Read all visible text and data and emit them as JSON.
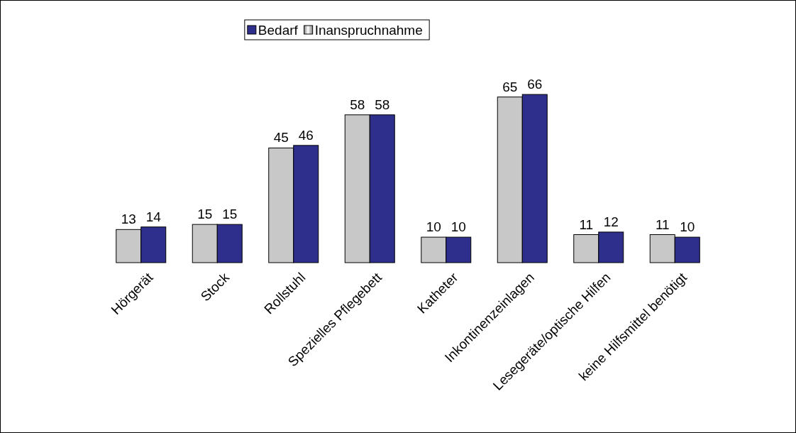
{
  "chart_data": {
    "type": "bar",
    "categories": [
      "Hörgerät",
      "Stock",
      "Rollstuhl",
      "Spezielles Pflegebett",
      "Katheter",
      "Inkontinenzeinlagen",
      "Lesegeräte/optische Hilfen",
      "keine Hilfsmittel benötigt"
    ],
    "series": [
      {
        "name": "Inanspruchnahme",
        "color": "#c8c8c8",
        "values": [
          13,
          15,
          45,
          58,
          10,
          65,
          11,
          11
        ]
      },
      {
        "name": "Bedarf",
        "color": "#2e2e8c",
        "values": [
          14,
          15,
          46,
          58,
          10,
          66,
          12,
          10
        ]
      }
    ],
    "data_labels": true,
    "legend": "top",
    "grid": false
  }
}
